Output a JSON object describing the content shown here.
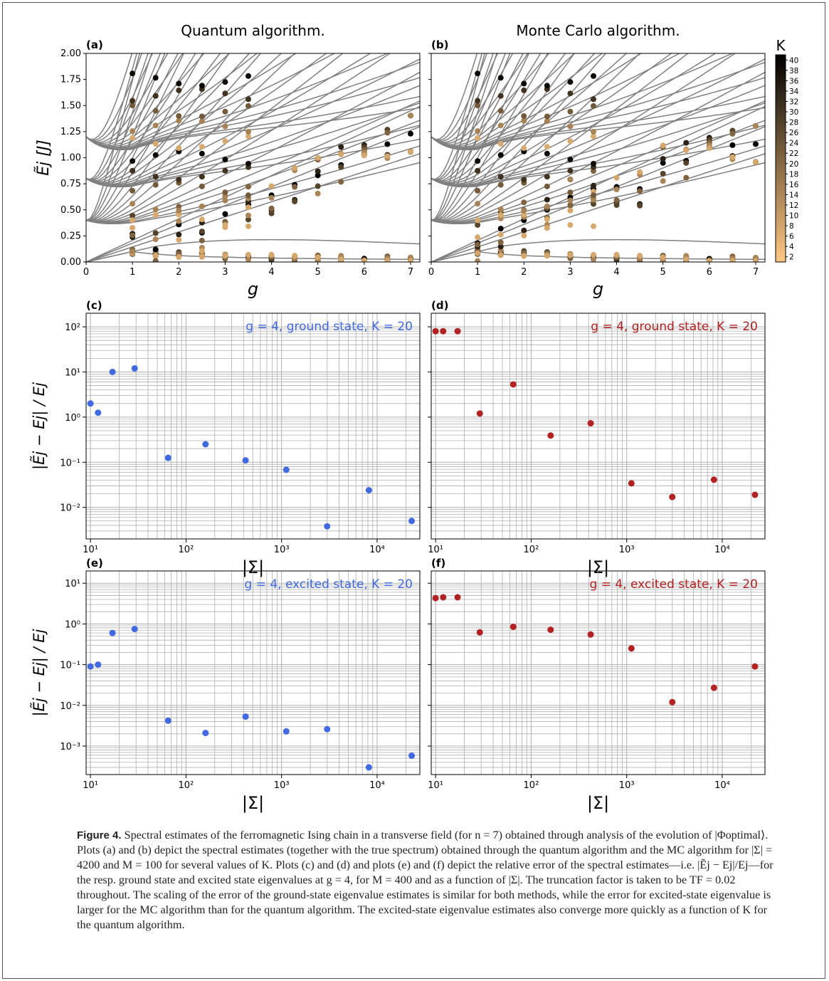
{
  "figure": {
    "caption_label": "Figure 4.",
    "caption_text": "Spectral estimates of the ferromagnetic Ising chain in a transverse field (for n = 7) obtained through analysis of the evolution of |Φoptimal⟩. Plots (a) and (b) depict the spectral estimates (together with the true spectrum) obtained through the quantum algorithm and the MC algorithm for |Σ| = 4200 and M = 100 for several values of K. Plots (c) and (d) and plots (e) and (f) depict the relative error of the spectral estimates—i.e. |Ẽj − Ej|/Ej—for the resp. ground state and excited state eigenvalues at g = 4, for M = 400 and as a function of |Σ|. The truncation factor is taken to be TF = 0.02 throughout. The scaling of the error of the ground-state eigenvalue estimates is similar for both methods, while the error for excited-state eigenvalue is larger for the MC algorithm than for the quantum algorithm. The excited-state eigenvalue estimates also converge more quickly as a function of K for the quantum algorithm."
  },
  "colors": {
    "blue": "#4169e1",
    "red": "#b22222",
    "grid": "#b0b0b0",
    "curve": "#808080",
    "axis": "#000000"
  },
  "chart_data": [
    {
      "panel": "(a)",
      "type": "scatter",
      "title": "Quantum algorithm.",
      "xlabel": "g",
      "ylabel": "Ẽj [J]",
      "xlim": [
        0,
        7.2
      ],
      "ylim": [
        0,
        2.0
      ],
      "xticks": [
        "0",
        "1",
        "2",
        "3",
        "4",
        "5",
        "6",
        "7"
      ],
      "yticks": [
        "0.00",
        "0.25",
        "0.50",
        "0.75",
        "1.00",
        "1.25",
        "1.50",
        "1.75",
        "2.00"
      ],
      "background": "true spectrum (gray curves)",
      "x": [
        1,
        1.5,
        2,
        2.5,
        3,
        3.5,
        4,
        4.5,
        5,
        5.5,
        6,
        6.5,
        7
      ],
      "series": [
        {
          "name": "ground state (high K)",
          "values": [
            0.1,
            0.08,
            0.07,
            0.06,
            0.055,
            0.05,
            0.045,
            0.04,
            0.038,
            0.035,
            0.032,
            0.03,
            0.028
          ]
        },
        {
          "name": "excited state (high K)",
          "values": [
            0.27,
            0.12,
            0.36,
            0.28,
            0.46,
            0.55,
            0.64,
            0.74,
            0.83,
            0.93,
            1.03,
            1.13,
            1.23
          ]
        }
      ]
    },
    {
      "panel": "(b)",
      "type": "scatter",
      "title": "Monte Carlo algorithm.",
      "xlabel": "g",
      "ylabel": "",
      "xlim": [
        0,
        7.2
      ],
      "ylim": [
        0,
        2.0
      ],
      "xticks": [
        "0",
        "1",
        "2",
        "3",
        "4",
        "5",
        "6",
        "7"
      ],
      "background": "true spectrum (gray curves)",
      "colorbar": {
        "label": "K",
        "ticks": [
          "2",
          "4",
          "6",
          "8",
          "10",
          "12",
          "14",
          "16",
          "18",
          "20",
          "22",
          "24",
          "26",
          "28",
          "30",
          "32",
          "34",
          "36",
          "38",
          "40"
        ]
      },
      "x": [
        1,
        1.5,
        2,
        2.5,
        3,
        3.5,
        4,
        4.5,
        5,
        5.5,
        6,
        6.5,
        7
      ],
      "series": [
        {
          "name": "ground state (high K)",
          "values": [
            0.1,
            0.09,
            0.08,
            0.07,
            0.06,
            0.05,
            0.045,
            0.04,
            0.037,
            0.034,
            0.031,
            0.029,
            0.027
          ]
        },
        {
          "name": "excited state (high K)",
          "values": [
            0.18,
            0.32,
            0.4,
            0.5,
            0.62,
            0.7,
            0.72,
            0.7,
            0.95,
            0.97,
            1.1,
            1.12,
            1.13
          ]
        }
      ]
    },
    {
      "panel": "(c)",
      "type": "scatter",
      "annotation": "g = 4, ground state, K = 20",
      "color": "blue",
      "xscale": "log",
      "yscale": "log",
      "xlabel": "|Σ|",
      "ylabel": "|Ẽj − Ej| / Ej",
      "xlim": [
        9,
        28000
      ],
      "ylim": [
        0.002,
        200
      ],
      "xticks": [
        "10¹",
        "10²",
        "10³",
        "10⁴"
      ],
      "yticks": [
        "10⁻²",
        "10⁻¹",
        "10⁰",
        "10¹",
        "10²"
      ],
      "x": [
        10,
        12,
        17,
        29,
        65,
        160,
        420,
        1120,
        3000,
        8200,
        23000
      ],
      "values": [
        2.0,
        1.25,
        10,
        12,
        0.125,
        0.25,
        0.11,
        0.068,
        0.0038,
        0.024,
        0.005
      ]
    },
    {
      "panel": "(d)",
      "type": "scatter",
      "annotation": "g = 4, ground state, K = 20",
      "color": "red",
      "xscale": "log",
      "yscale": "log",
      "xlabel": "|Σ|",
      "ylabel": "",
      "xlim": [
        9,
        28000
      ],
      "ylim": [
        0.002,
        200
      ],
      "xticks": [
        "10¹",
        "10²",
        "10³",
        "10⁴"
      ],
      "x": [
        10,
        12,
        17,
        29,
        65,
        160,
        420,
        1120,
        3000,
        8200,
        22000
      ],
      "values": [
        80,
        80,
        80,
        1.2,
        5.3,
        0.39,
        0.73,
        0.034,
        0.017,
        0.041,
        0.019
      ]
    },
    {
      "panel": "(e)",
      "type": "scatter",
      "annotation": "g = 4, excited state, K = 20",
      "color": "blue",
      "xscale": "log",
      "yscale": "log",
      "xlabel": "|Σ|",
      "ylabel": "|Ẽj − Ej| / Ej",
      "xlim": [
        9,
        28000
      ],
      "ylim": [
        0.0002,
        20
      ],
      "xticks": [
        "10¹",
        "10²",
        "10³",
        "10⁴"
      ],
      "yticks": [
        "10⁻³",
        "10⁻²",
        "10⁻¹",
        "10⁰",
        "10¹"
      ],
      "x": [
        10,
        12,
        17,
        29,
        65,
        160,
        420,
        1120,
        3000,
        8200,
        23000
      ],
      "values": [
        0.09,
        0.1,
        0.6,
        0.75,
        0.0042,
        0.0021,
        0.0053,
        0.0023,
        0.0026,
        0.0003,
        0.00058
      ]
    },
    {
      "panel": "(f)",
      "type": "scatter",
      "annotation": "g = 4, excited state, K = 20",
      "color": "red",
      "xscale": "log",
      "yscale": "log",
      "xlabel": "|Σ|",
      "ylabel": "",
      "xlim": [
        9,
        28000
      ],
      "ylim": [
        0.0002,
        20
      ],
      "xticks": [
        "10¹",
        "10²",
        "10³",
        "10⁴"
      ],
      "x": [
        10,
        12,
        17,
        29,
        65,
        160,
        420,
        1120,
        3000,
        8200,
        22000
      ],
      "values": [
        4.3,
        4.5,
        4.5,
        0.62,
        0.85,
        0.72,
        0.55,
        0.25,
        0.012,
        0.027,
        0.09
      ]
    }
  ]
}
